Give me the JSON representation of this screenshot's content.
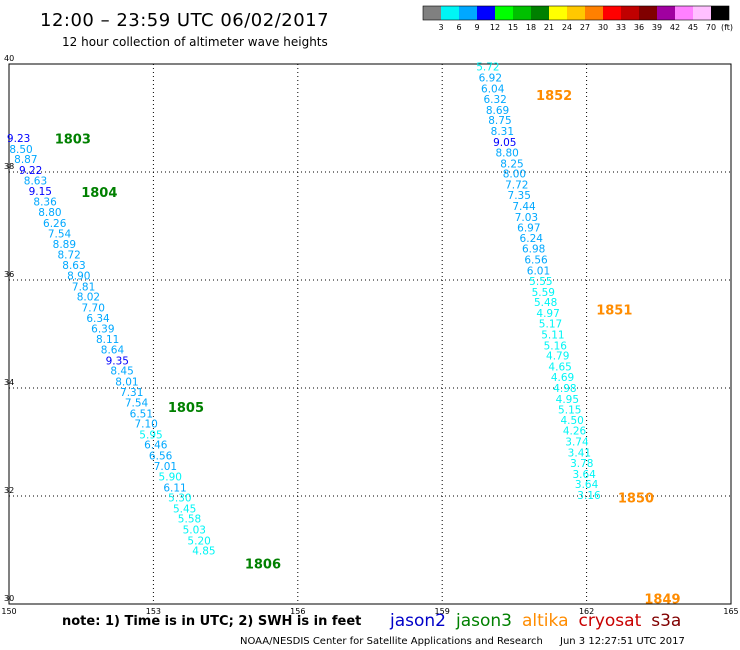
{
  "title": "12:00 – 23:59 UTC 06/02/2017",
  "subtitle": "12 hour collection of altimeter wave heights",
  "legend": {
    "unit": "(ft)",
    "colors": [
      "#808080",
      "#00f5f5",
      "#00a8ff",
      "#0000ff",
      "#00ff00",
      "#00c000",
      "#008000",
      "#ffff00",
      "#ffc800",
      "#ff8000",
      "#ff0000",
      "#c00000",
      "#800000",
      "#a000a0",
      "#ff80ff",
      "#ffc0ff",
      "#000000"
    ],
    "labels": [
      "3",
      "6",
      "9",
      "12",
      "15",
      "18",
      "21",
      "24",
      "27",
      "30",
      "33",
      "36",
      "39",
      "42",
      "45",
      "70"
    ]
  },
  "axes": {
    "x_ticks": [
      "150",
      "153",
      "156",
      "159",
      "162",
      "165"
    ],
    "y_ticks": [
      "30",
      "32",
      "34",
      "36",
      "38",
      "40"
    ],
    "xlim": [
      150,
      165
    ],
    "ylim": [
      30,
      40
    ]
  },
  "satellite_colors": {
    "jason2": "#0000c8",
    "jason3": "#008000",
    "altika": "#ff8c00",
    "cryosat": "#c80000",
    "s3a": "#800000"
  },
  "chart_data": {
    "type": "scatter",
    "time_labels": [
      {
        "text": "1803",
        "lon": 150.95,
        "lat": 38.62,
        "sat": "jason3"
      },
      {
        "text": "1804",
        "lon": 151.5,
        "lat": 37.63,
        "sat": "jason3"
      },
      {
        "text": "1805",
        "lon": 153.3,
        "lat": 33.65,
        "sat": "jason3"
      },
      {
        "text": "1806",
        "lon": 154.9,
        "lat": 30.75,
        "sat": "jason3"
      },
      {
        "text": "1852",
        "lon": 160.95,
        "lat": 39.43,
        "sat": "altika"
      },
      {
        "text": "1851",
        "lon": 162.2,
        "lat": 35.45,
        "sat": "altika"
      },
      {
        "text": "1850",
        "lon": 162.65,
        "lat": 31.97,
        "sat": "altika"
      },
      {
        "text": "1849",
        "lon": 163.2,
        "lat": 30.1,
        "sat": "altika"
      }
    ],
    "series": [
      {
        "name": "jason3",
        "points": [
          {
            "lon": 150.2,
            "lat": 38.63,
            "v": "9.23"
          },
          {
            "lon": 150.25,
            "lat": 38.43,
            "v": "8.50"
          },
          {
            "lon": 150.35,
            "lat": 38.24,
            "v": "8.87"
          },
          {
            "lon": 150.45,
            "lat": 38.04,
            "v": "9.22"
          },
          {
            "lon": 150.55,
            "lat": 37.84,
            "v": "8.63"
          },
          {
            "lon": 150.65,
            "lat": 37.65,
            "v": "9.15"
          },
          {
            "lon": 150.75,
            "lat": 37.45,
            "v": "8.36"
          },
          {
            "lon": 150.85,
            "lat": 37.26,
            "v": "8.80"
          },
          {
            "lon": 150.95,
            "lat": 37.06,
            "v": "6.26"
          },
          {
            "lon": 151.05,
            "lat": 36.86,
            "v": "7.54"
          },
          {
            "lon": 151.15,
            "lat": 36.67,
            "v": "8.89"
          },
          {
            "lon": 151.25,
            "lat": 36.47,
            "v": "8.72"
          },
          {
            "lon": 151.35,
            "lat": 36.28,
            "v": "8.63"
          },
          {
            "lon": 151.45,
            "lat": 36.08,
            "v": "8.90"
          },
          {
            "lon": 151.55,
            "lat": 35.88,
            "v": "7.81"
          },
          {
            "lon": 151.65,
            "lat": 35.69,
            "v": "8.02"
          },
          {
            "lon": 151.75,
            "lat": 35.49,
            "v": "7.70"
          },
          {
            "lon": 151.85,
            "lat": 35.3,
            "v": "6.34"
          },
          {
            "lon": 151.95,
            "lat": 35.1,
            "v": "6.39"
          },
          {
            "lon": 152.05,
            "lat": 34.91,
            "v": "8.11"
          },
          {
            "lon": 152.15,
            "lat": 34.71,
            "v": "8.64"
          },
          {
            "lon": 152.25,
            "lat": 34.51,
            "v": "9.35"
          },
          {
            "lon": 152.35,
            "lat": 34.32,
            "v": "8.45"
          },
          {
            "lon": 152.45,
            "lat": 34.12,
            "v": "8.01"
          },
          {
            "lon": 152.55,
            "lat": 33.93,
            "v": "7.31"
          },
          {
            "lon": 152.65,
            "lat": 33.73,
            "v": "7.54"
          },
          {
            "lon": 152.75,
            "lat": 33.53,
            "v": "6.51"
          },
          {
            "lon": 152.85,
            "lat": 33.34,
            "v": "7.10"
          },
          {
            "lon": 152.95,
            "lat": 33.14,
            "v": "5.95"
          },
          {
            "lon": 153.05,
            "lat": 32.95,
            "v": "6.46"
          },
          {
            "lon": 153.15,
            "lat": 32.75,
            "v": "6.56"
          },
          {
            "lon": 153.25,
            "lat": 32.56,
            "v": "7.01"
          },
          {
            "lon": 153.35,
            "lat": 32.36,
            "v": "5.90"
          },
          {
            "lon": 153.45,
            "lat": 32.16,
            "v": "6.11"
          },
          {
            "lon": 153.55,
            "lat": 31.97,
            "v": "5.30"
          },
          {
            "lon": 153.65,
            "lat": 31.77,
            "v": "5.45"
          },
          {
            "lon": 153.75,
            "lat": 31.58,
            "v": "5.58"
          },
          {
            "lon": 153.85,
            "lat": 31.38,
            "v": "5.03"
          },
          {
            "lon": 153.95,
            "lat": 31.18,
            "v": "5.20"
          },
          {
            "lon": 154.05,
            "lat": 30.99,
            "v": "4.85"
          }
        ]
      },
      {
        "name": "altika",
        "points": [
          {
            "lon": 159.95,
            "lat": 39.95,
            "v": "5.72"
          },
          {
            "lon": 160.0,
            "lat": 39.75,
            "v": "6.92"
          },
          {
            "lon": 160.05,
            "lat": 39.55,
            "v": "6.04"
          },
          {
            "lon": 160.1,
            "lat": 39.35,
            "v": "6.32"
          },
          {
            "lon": 160.15,
            "lat": 39.15,
            "v": "8.69"
          },
          {
            "lon": 160.2,
            "lat": 38.96,
            "v": "8.75"
          },
          {
            "lon": 160.25,
            "lat": 38.76,
            "v": "8.31"
          },
          {
            "lon": 160.3,
            "lat": 38.56,
            "v": "9.05"
          },
          {
            "lon": 160.35,
            "lat": 38.36,
            "v": "8.80"
          },
          {
            "lon": 160.45,
            "lat": 38.16,
            "v": "8.25"
          },
          {
            "lon": 160.5,
            "lat": 37.97,
            "v": "8.00"
          },
          {
            "lon": 160.55,
            "lat": 37.77,
            "v": "7.72"
          },
          {
            "lon": 160.6,
            "lat": 37.57,
            "v": "7.35"
          },
          {
            "lon": 160.7,
            "lat": 37.37,
            "v": "7.44"
          },
          {
            "lon": 160.75,
            "lat": 37.17,
            "v": "7.03"
          },
          {
            "lon": 160.8,
            "lat": 36.97,
            "v": "6.97"
          },
          {
            "lon": 160.85,
            "lat": 36.78,
            "v": "6.24"
          },
          {
            "lon": 160.9,
            "lat": 36.58,
            "v": "6.98"
          },
          {
            "lon": 160.95,
            "lat": 36.38,
            "v": "6.56"
          },
          {
            "lon": 161.0,
            "lat": 36.18,
            "v": "6.01"
          },
          {
            "lon": 161.05,
            "lat": 35.98,
            "v": "5.55"
          },
          {
            "lon": 161.1,
            "lat": 35.78,
            "v": "5.59"
          },
          {
            "lon": 161.15,
            "lat": 35.59,
            "v": "5.48"
          },
          {
            "lon": 161.2,
            "lat": 35.39,
            "v": "4.97"
          },
          {
            "lon": 161.25,
            "lat": 35.19,
            "v": "5.17"
          },
          {
            "lon": 161.3,
            "lat": 34.99,
            "v": "5.11"
          },
          {
            "lon": 161.35,
            "lat": 34.79,
            "v": "5.16"
          },
          {
            "lon": 161.4,
            "lat": 34.6,
            "v": "4.79"
          },
          {
            "lon": 161.45,
            "lat": 34.4,
            "v": "4.65"
          },
          {
            "lon": 161.5,
            "lat": 34.2,
            "v": "4.69"
          },
          {
            "lon": 161.55,
            "lat": 34.0,
            "v": "4.98"
          },
          {
            "lon": 161.6,
            "lat": 33.8,
            "v": "4.95"
          },
          {
            "lon": 161.65,
            "lat": 33.6,
            "v": "5.15"
          },
          {
            "lon": 161.7,
            "lat": 33.41,
            "v": "4.50"
          },
          {
            "lon": 161.75,
            "lat": 33.21,
            "v": "4.26"
          },
          {
            "lon": 161.8,
            "lat": 33.01,
            "v": "3.74"
          },
          {
            "lon": 161.85,
            "lat": 32.81,
            "v": "3.41"
          },
          {
            "lon": 161.9,
            "lat": 32.61,
            "v": "3.78"
          },
          {
            "lon": 161.95,
            "lat": 32.41,
            "v": "3.64"
          },
          {
            "lon": 162.0,
            "lat": 32.22,
            "v": "3.64"
          },
          {
            "lon": 162.05,
            "lat": 32.02,
            "v": "3.16"
          }
        ]
      }
    ]
  },
  "footer": {
    "note": "note: 1) Time is in UTC; 2) SWH is in feet",
    "satellites": [
      {
        "name": "jason2",
        "key": "jason2"
      },
      {
        "name": "jason3",
        "key": "jason3"
      },
      {
        "name": "altika",
        "key": "altika"
      },
      {
        "name": "cryosat",
        "key": "cryosat"
      },
      {
        "name": "s3a",
        "key": "s3a"
      }
    ],
    "credit": "NOAA/NESDIS Center for Satellite Applications and Research",
    "timestamp": "Jun  3 12:27:51 UTC 2017"
  }
}
